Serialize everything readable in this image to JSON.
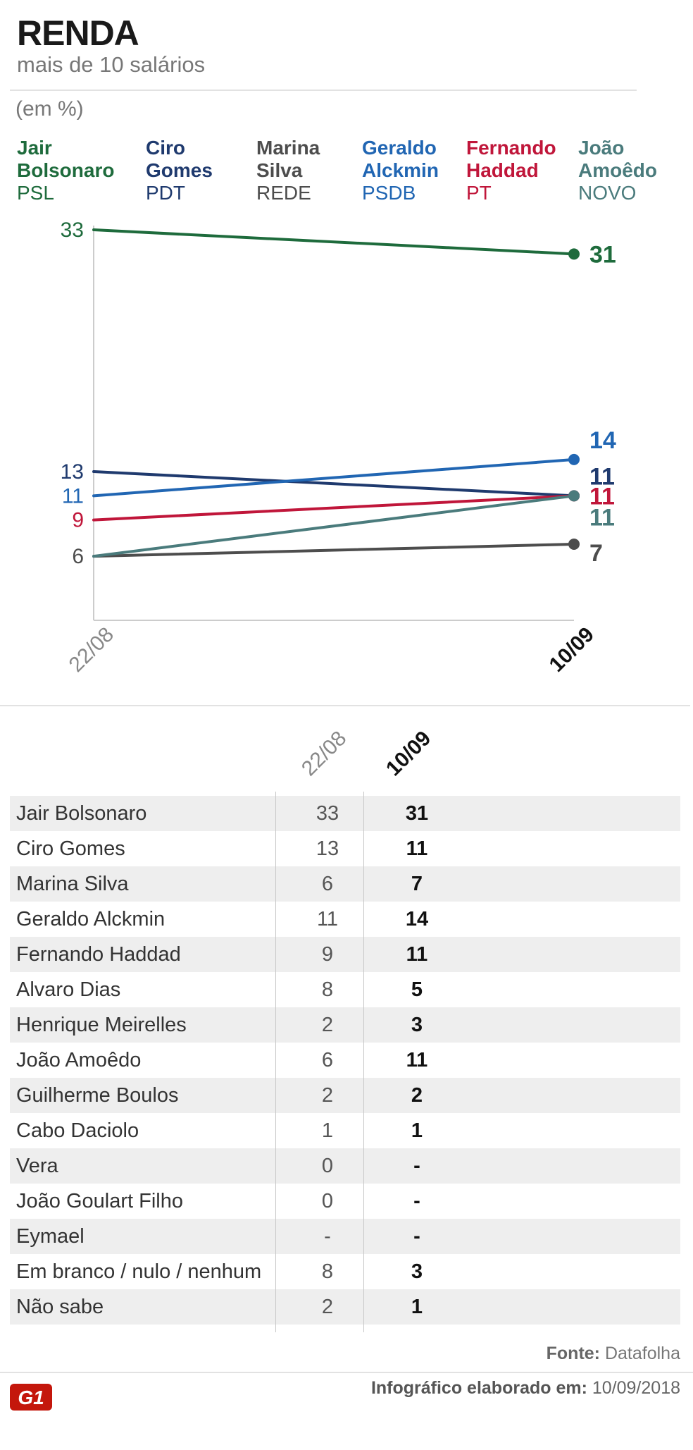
{
  "header": {
    "title": "RENDA",
    "subtitle": "mais de 10 salários",
    "unit": "(em %)"
  },
  "legend": [
    {
      "name": "Jair\nBolsonaro",
      "party": "PSL",
      "color": "#1e6b3c"
    },
    {
      "name": "Ciro\nGomes",
      "party": "PDT",
      "color": "#1f3a6e"
    },
    {
      "name": "Marina\nSilva",
      "party": "REDE",
      "color": "#4d4d4d"
    },
    {
      "name": "Geraldo\nAlckmin",
      "party": "PSDB",
      "color": "#2166b3"
    },
    {
      "name": "Fernando\nHaddad",
      "party": "PT",
      "color": "#c0163a"
    },
    {
      "name": "João\nAmoêdo",
      "party": "NOVO",
      "color": "#4a7b7c"
    }
  ],
  "chart_data": {
    "type": "line",
    "x": [
      "22/08",
      "10/09"
    ],
    "ylim": [
      0,
      35
    ],
    "grid": false,
    "series": [
      {
        "name": "Jair Bolsonaro",
        "color": "#1e6b3c",
        "values": [
          33,
          31
        ],
        "start_label": "33",
        "end_label": "31"
      },
      {
        "name": "Ciro Gomes",
        "color": "#1f3a6e",
        "values": [
          13,
          11
        ],
        "start_label": "13",
        "end_label": "11"
      },
      {
        "name": "Marina Silva",
        "color": "#4d4d4d",
        "values": [
          6,
          7
        ],
        "start_label": "",
        "end_label": "7"
      },
      {
        "name": "Geraldo Alckmin",
        "color": "#2166b3",
        "values": [
          11,
          14
        ],
        "start_label": "11",
        "end_label": "14"
      },
      {
        "name": "Fernando Haddad",
        "color": "#c0163a",
        "values": [
          9,
          11
        ],
        "start_label": "9",
        "end_label": "11"
      },
      {
        "name": "João Amoêdo",
        "color": "#4a7b7c",
        "values": [
          6,
          11
        ],
        "start_label": "",
        "end_label": "11"
      }
    ],
    "shared_start_label": {
      "text": "6",
      "value": 6,
      "color": "#4d4d4d"
    }
  },
  "table": {
    "col1": "22/08",
    "col2": "10/09",
    "rows": [
      {
        "name": "Jair Bolsonaro",
        "v1": "33",
        "v2": "31"
      },
      {
        "name": "Ciro Gomes",
        "v1": "13",
        "v2": "11"
      },
      {
        "name": "Marina Silva",
        "v1": "6",
        "v2": "7"
      },
      {
        "name": "Geraldo Alckmin",
        "v1": "11",
        "v2": "14"
      },
      {
        "name": "Fernando Haddad",
        "v1": "9",
        "v2": "11"
      },
      {
        "name": "Alvaro Dias",
        "v1": "8",
        "v2": "5"
      },
      {
        "name": "Henrique Meirelles",
        "v1": "2",
        "v2": "3"
      },
      {
        "name": "João Amoêdo",
        "v1": "6",
        "v2": "11"
      },
      {
        "name": "Guilherme Boulos",
        "v1": "2",
        "v2": "2"
      },
      {
        "name": "Cabo Daciolo",
        "v1": "1",
        "v2": "1"
      },
      {
        "name": "Vera",
        "v1": "0",
        "v2": "-"
      },
      {
        "name": "João Goulart Filho",
        "v1": "0",
        "v2": "-"
      },
      {
        "name": "Eymael",
        "v1": "-",
        "v2": "-"
      },
      {
        "name": "Em branco / nulo / nenhum",
        "v1": "8",
        "v2": "3"
      },
      {
        "name": "Não sabe",
        "v1": "2",
        "v2": "1"
      }
    ]
  },
  "footer": {
    "source_label": "Fonte:",
    "source_value": "Datafolha",
    "logo_text": "G1",
    "logo_color": "#c4170c",
    "credit_label": "Infográfico elaborado em:",
    "credit_value": "10/09/2018"
  }
}
